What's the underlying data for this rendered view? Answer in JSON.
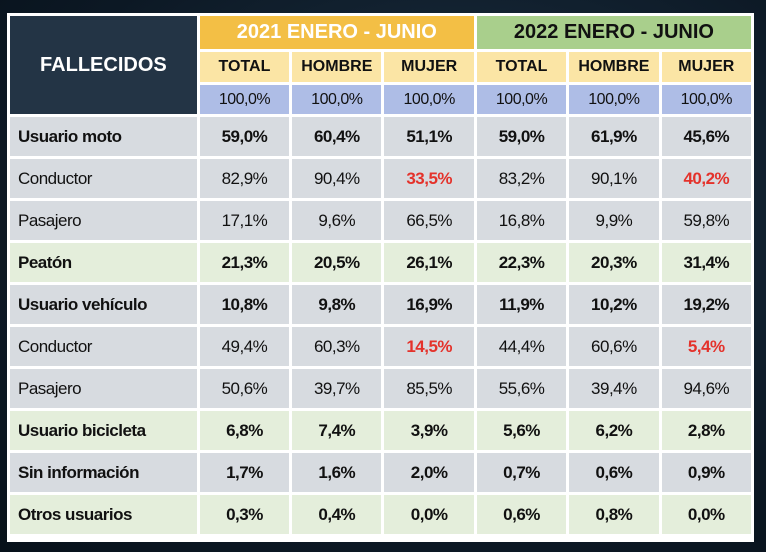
{
  "header": {
    "title": "FALLECIDOS",
    "group_2021": "2021 ENERO - JUNIO",
    "group_2022": "2022 ENERO - JUNIO",
    "columns": [
      "TOTAL",
      "HOMBRE",
      "MUJER",
      "TOTAL",
      "HOMBRE",
      "MUJER"
    ],
    "totals": [
      "100,0%",
      "100,0%",
      "100,0%",
      "100,0%",
      "100,0%",
      "100,0%"
    ]
  },
  "rows": [
    {
      "label": "Usuario moto",
      "values": [
        "59,0%",
        "60,4%",
        "51,1%",
        "59,0%",
        "61,9%",
        "45,6%"
      ]
    },
    {
      "label": "Conductor",
      "values": [
        "82,9%",
        "90,4%",
        "33,5%",
        "83,2%",
        "90,1%",
        "40,2%"
      ]
    },
    {
      "label": "Pasajero",
      "values": [
        "17,1%",
        "9,6%",
        "66,5%",
        "16,8%",
        "9,9%",
        "59,8%"
      ]
    },
    {
      "label": "Peatón",
      "values": [
        "21,3%",
        "20,5%",
        "26,1%",
        "22,3%",
        "20,3%",
        "31,4%"
      ]
    },
    {
      "label": "Usuario vehículo",
      "values": [
        "10,8%",
        "9,8%",
        "16,9%",
        "11,9%",
        "10,2%",
        "19,2%"
      ]
    },
    {
      "label": "Conductor",
      "values": [
        "49,4%",
        "60,3%",
        "14,5%",
        "44,4%",
        "60,6%",
        "5,4%"
      ]
    },
    {
      "label": "Pasajero",
      "values": [
        "50,6%",
        "39,7%",
        "85,5%",
        "55,6%",
        "39,4%",
        "94,6%"
      ]
    },
    {
      "label": "Usuario bicicleta",
      "values": [
        "6,8%",
        "7,4%",
        "3,9%",
        "5,6%",
        "6,2%",
        "2,8%"
      ]
    },
    {
      "label": "Sin información",
      "values": [
        "1,7%",
        "1,6%",
        "2,0%",
        "0,7%",
        "0,6%",
        "0,9%"
      ]
    },
    {
      "label": "Otros usuarios",
      "values": [
        "0,3%",
        "0,4%",
        "0,0%",
        "0,6%",
        "0,8%",
        "0,0%"
      ]
    }
  ],
  "colors": {
    "header_dark": "#233445",
    "header_2021": "#f3bf45",
    "header_2022": "#a9cf8c",
    "subheader": "#fbe5a5",
    "total_row": "#aebde6",
    "row_gray": "#d7dbe0",
    "row_green": "#e4eedb",
    "highlight_red": "#e4322b"
  }
}
